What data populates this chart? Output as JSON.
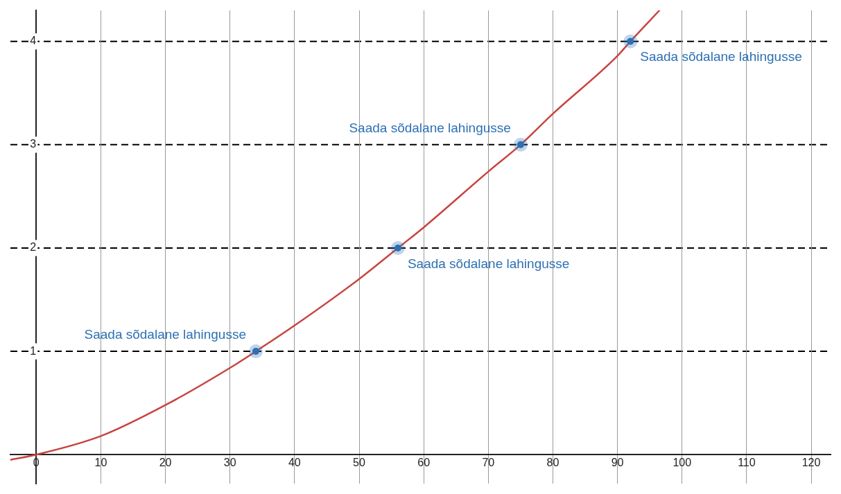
{
  "chart_data": {
    "type": "line",
    "xlim": [
      -4,
      123
    ],
    "ylim": [
      -0.28,
      4.3
    ],
    "xticks": [
      0,
      10,
      20,
      30,
      40,
      50,
      60,
      70,
      80,
      90,
      100,
      110,
      120
    ],
    "yticks": [
      1,
      2,
      3,
      4
    ],
    "grid": "x",
    "series": [
      {
        "type": "line",
        "color": "#c74440",
        "marker": "none",
        "x": [
          -4,
          0,
          10,
          20,
          30,
          34,
          40,
          50,
          56,
          60,
          70,
          75,
          80,
          90,
          92,
          96.5
        ],
        "values": [
          -0.05,
          0,
          0.18,
          0.48,
          0.84,
          1,
          1.25,
          1.7,
          2,
          2.2,
          2.74,
          3,
          3.3,
          3.86,
          4,
          4.3
        ]
      },
      {
        "type": "scatter",
        "color": "#2d70b3",
        "marker": "circle",
        "x": [
          34,
          56,
          75,
          92
        ],
        "values": [
          1,
          2,
          3,
          4
        ]
      }
    ],
    "ref_lines": [
      {
        "axis": "y",
        "value": 1,
        "color": "#000000",
        "line_style": "dashed"
      },
      {
        "axis": "y",
        "value": 2,
        "color": "#000000",
        "line_style": "dashed"
      },
      {
        "axis": "y",
        "value": 3,
        "color": "#000000",
        "line_style": "dashed"
      },
      {
        "axis": "y",
        "value": 4,
        "color": "#000000",
        "line_style": "dashed"
      }
    ],
    "annotations": [
      {
        "text": "Saada sõdalane lahingusse",
        "x": 34,
        "y": 1
      },
      {
        "text": "Saada sõdalane lahingusse",
        "x": 56,
        "y": 2
      },
      {
        "text": "Saada sõdalane lahingusse",
        "x": 75,
        "y": 3
      },
      {
        "text": "Saada sõdalane lahingusse",
        "x": 92,
        "y": 4
      }
    ]
  }
}
